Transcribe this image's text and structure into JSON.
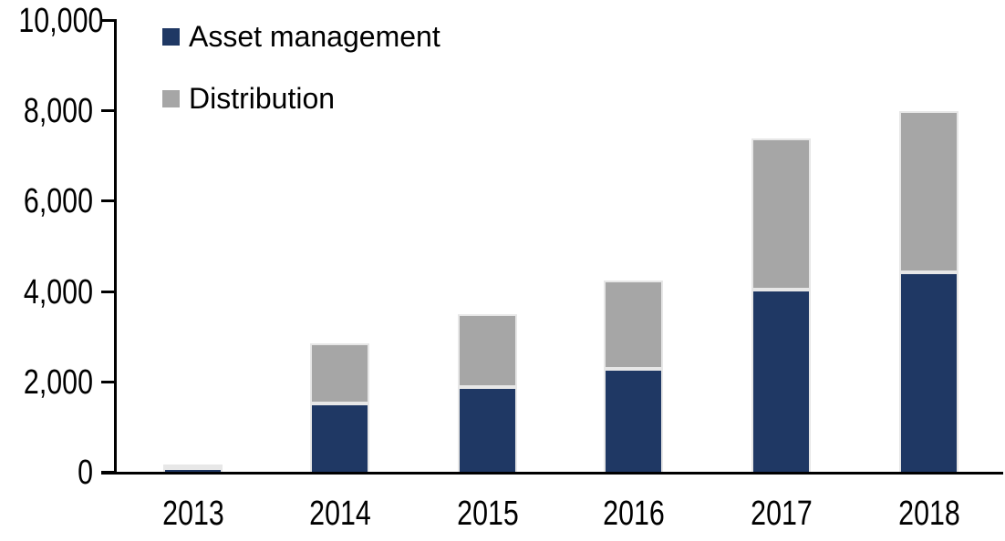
{
  "chart_data": {
    "type": "bar",
    "stacked": true,
    "title": "",
    "categories": [
      "2013",
      "2014",
      "2015",
      "2016",
      "2017",
      "2018"
    ],
    "series": [
      {
        "name": "Asset management",
        "color": "#1F3864",
        "values": [
          100,
          1530,
          1900,
          2300,
          4050,
          4430
        ]
      },
      {
        "name": "Distribution",
        "color": "#A6A6A6",
        "values": [
          80,
          1330,
          1600,
          1950,
          3350,
          3570
        ]
      }
    ],
    "totals": [
      180,
      2860,
      3500,
      4250,
      7400,
      8000
    ],
    "xlabel": "",
    "ylabel": "",
    "ylim": [
      0,
      10000
    ],
    "yticks": [
      0,
      2000,
      4000,
      6000,
      8000,
      10000
    ],
    "ytick_labels": [
      "0",
      "2,000",
      "4,000",
      "6,000",
      "8,000",
      "10,000"
    ],
    "legend_position": "top-left",
    "grid": false,
    "axis_color": "#000000",
    "bar_border_color": "#E7E7E7",
    "background": "#FFFFFF"
  }
}
